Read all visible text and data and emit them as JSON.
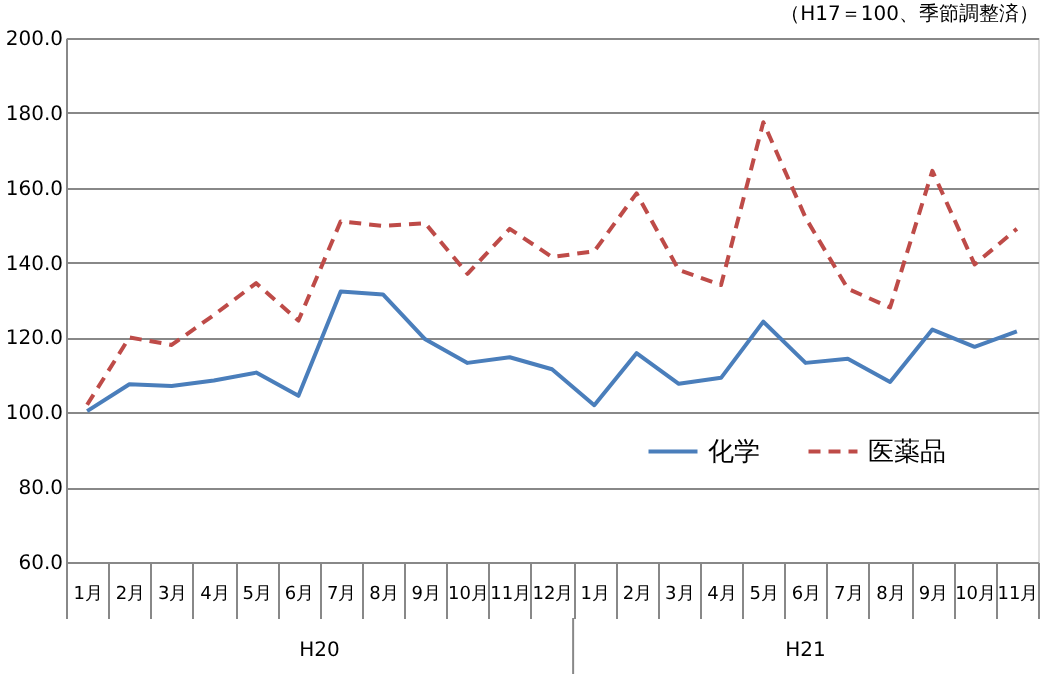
{
  "chart_data": {
    "type": "line",
    "title": "（H17＝100、季節調整済）",
    "categories": [
      "1月",
      "2月",
      "3月",
      "4月",
      "5月",
      "6月",
      "7月",
      "8月",
      "9月",
      "10月",
      "11月",
      "12月",
      "1月",
      "2月",
      "3月",
      "4月",
      "5月",
      "6月",
      "7月",
      "8月",
      "9月",
      "10月",
      "11月"
    ],
    "annotations": [
      "H20",
      "H21"
    ],
    "series": [
      {
        "name": "化学",
        "color": "#4a7ebb",
        "line_style": "solid",
        "values": [
          100.3,
          107.5,
          107,
          108.5,
          110.6,
          104.4,
          132.3,
          131.5,
          119.5,
          113.2,
          114.7,
          111.5,
          101.9,
          115.8,
          107.6,
          109.2,
          124.2,
          113.2,
          114.3,
          108.1,
          122.1,
          117.5,
          121.6
        ]
      },
      {
        "name": "医薬品",
        "color": "#be4b48",
        "line_style": "dashed",
        "values": [
          102,
          120,
          118,
          126,
          134.5,
          124.5,
          151,
          149.8,
          150.5,
          137,
          149,
          141.5,
          143,
          158.5,
          138,
          134,
          177.5,
          152,
          133,
          128,
          164.5,
          139.5,
          149
        ]
      }
    ],
    "ylim": [
      60,
      200
    ],
    "yticks": [
      {
        "value": 60,
        "label": "60.0"
      },
      {
        "value": 80,
        "label": "80.0"
      },
      {
        "value": 100,
        "label": "100.0"
      },
      {
        "value": 120,
        "label": "120.0"
      },
      {
        "value": 140,
        "label": "140.0"
      },
      {
        "value": 160,
        "label": "160.0"
      },
      {
        "value": 180,
        "label": "180.0"
      },
      {
        "value": 200,
        "label": "200.0"
      }
    ],
    "grid": "y",
    "legend": "right"
  }
}
